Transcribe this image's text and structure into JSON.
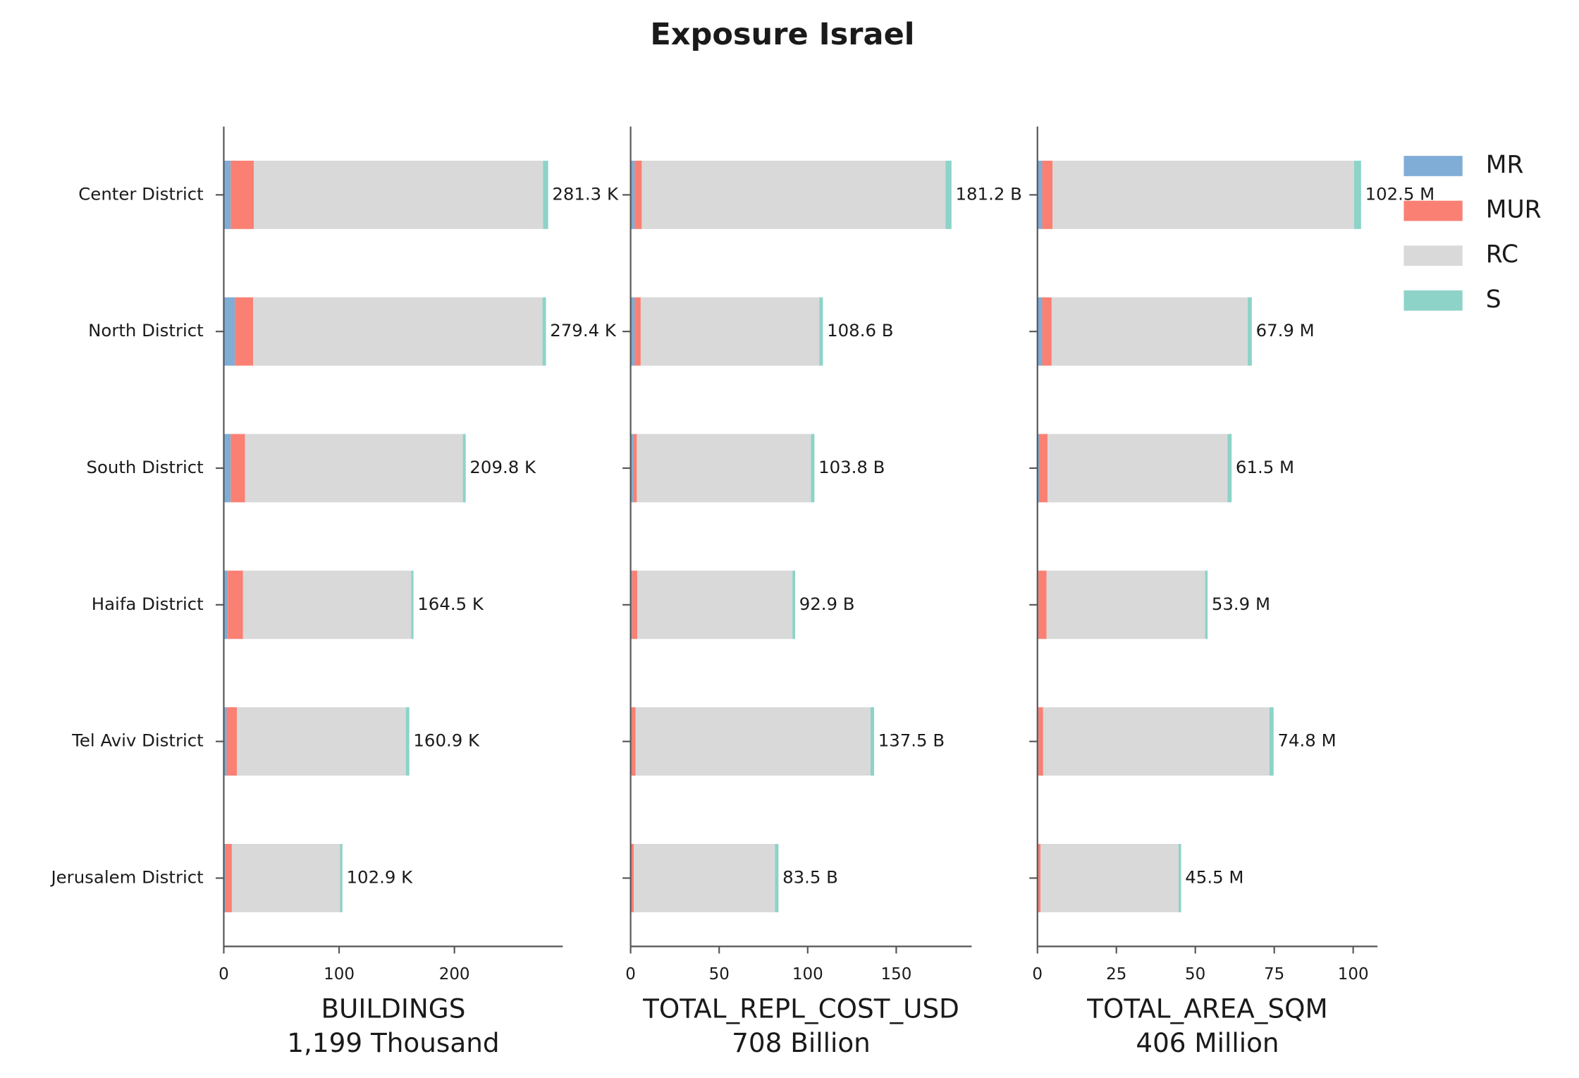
{
  "title": "Exposure Israel",
  "series": [
    {
      "name": "MR",
      "color": "#7fadd6"
    },
    {
      "name": "MUR",
      "color": "#f98073"
    },
    {
      "name": "RC",
      "color": "#d9d9d9"
    },
    {
      "name": "S",
      "color": "#8dd3c7"
    }
  ],
  "categories": [
    "Center District",
    "North District",
    "South District",
    "Haifa District",
    "Tel Aviv District",
    "Jerusalem District"
  ],
  "chart_data": [
    {
      "type": "barh-stacked",
      "xlabel": "BUILDINGS",
      "xlabel_sub": "1,199 Thousand",
      "xlim": [
        0,
        294
      ],
      "xticks": [
        0,
        100,
        200
      ],
      "values": [
        [
          6,
          20,
          250.8,
          4.5
        ],
        [
          9.6,
          15.8,
          251,
          3
        ],
        [
          6,
          12.4,
          188.9,
          2.5
        ],
        [
          3.5,
          13.2,
          145.8,
          2
        ],
        [
          2.5,
          8.9,
          146.5,
          3
        ],
        [
          1.5,
          5.5,
          93.9,
          2
        ]
      ],
      "value_labels": [
        "281.3 K",
        "279.4 K",
        "209.8 K",
        "164.5 K",
        "160.9 K",
        "102.9 K"
      ]
    },
    {
      "type": "barh-stacked",
      "xlabel": "TOTAL_REPL_COST_USD",
      "xlabel_sub": "708 Billion",
      "xlim": [
        0,
        192.6
      ],
      "xticks": [
        0,
        50,
        100,
        150
      ],
      "values": [
        [
          2.3,
          4,
          171.5,
          3.4
        ],
        [
          2.3,
          3.4,
          100.9,
          2
        ],
        [
          1.5,
          2,
          98.3,
          2
        ],
        [
          0.8,
          3,
          87.6,
          1.5
        ],
        [
          0.5,
          2.3,
          132.7,
          2
        ],
        [
          0.3,
          1.5,
          79.7,
          2
        ]
      ],
      "value_labels": [
        "181.2 B",
        "108.6 B",
        "103.8 B",
        "92.9 B",
        "137.5 B",
        "83.5 B"
      ]
    },
    {
      "type": "barh-stacked",
      "xlabel": "TOTAL_AREA_SQM",
      "xlabel_sub": "406 Million",
      "xlim": [
        0,
        107.7
      ],
      "xticks": [
        0,
        25,
        50,
        75,
        100
      ],
      "values": [
        [
          1.5,
          3.3,
          95.5,
          2.2
        ],
        [
          1.5,
          3,
          62.1,
          1.3
        ],
        [
          0.5,
          2.7,
          57,
          1.3
        ],
        [
          0.3,
          2.6,
          50.2,
          0.8
        ],
        [
          0.3,
          1.5,
          71.7,
          1.3
        ],
        [
          0.2,
          0.8,
          43.7,
          0.8
        ]
      ],
      "value_labels": [
        "102.5 M",
        "67.9 M",
        "61.5 M",
        "53.9 M",
        "74.8 M",
        "45.5 M"
      ]
    }
  ]
}
